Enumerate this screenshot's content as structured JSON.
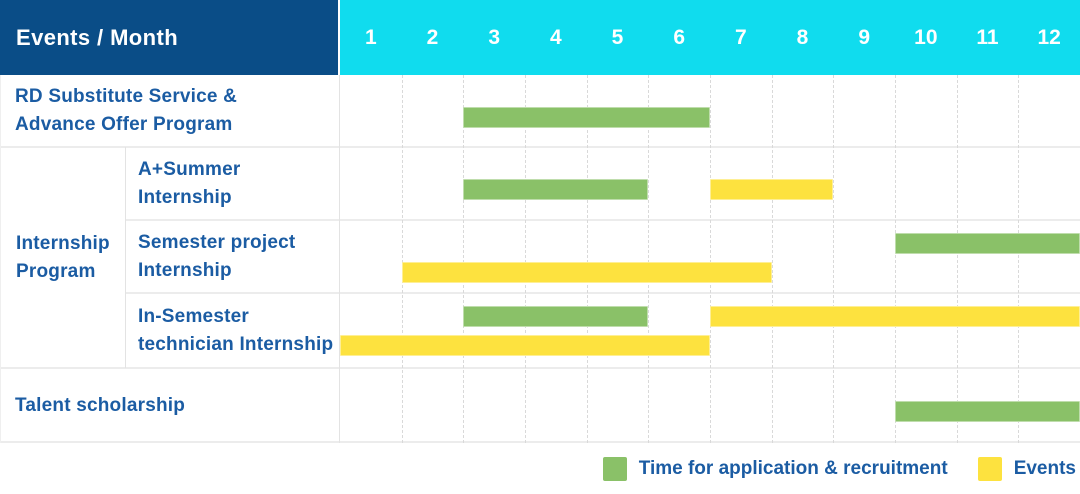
{
  "colors": {
    "header_bg": "#0a4d87",
    "months_bg": "#10dcee",
    "header_text": "#ffffff",
    "label_text": "#1b5ca3",
    "recruitment": "#8ac168",
    "events": "#fde23f",
    "row_line": "#ececec",
    "column_line": "#e3e3e3",
    "month_line_dashed": "#d9d9d9"
  },
  "header": {
    "title": "Events / Month",
    "months": [
      "1",
      "2",
      "3",
      "4",
      "5",
      "6",
      "7",
      "8",
      "9",
      "10",
      "11",
      "12"
    ]
  },
  "groups": [
    {
      "id": "internship-program",
      "label_lines": [
        "Internship",
        "Program"
      ]
    }
  ],
  "rows": [
    {
      "id": "rd-substitute-service",
      "label_lines": [
        "RD Substitute Service &",
        "Advance Offer Program"
      ],
      "group": null,
      "bars": [
        {
          "type": "recruitment",
          "start": 3,
          "end": 6,
          "lane": "center"
        }
      ]
    },
    {
      "id": "a-plus-summer-internship",
      "label_lines": [
        "A+Summer",
        "Internship"
      ],
      "group": "internship-program",
      "bars": [
        {
          "type": "recruitment",
          "start": 3,
          "end": 5,
          "lane": "center"
        },
        {
          "type": "events",
          "start": 7,
          "end": 8,
          "lane": "center"
        }
      ]
    },
    {
      "id": "semester-project-internship",
      "label_lines": [
        "Semester project",
        "Internship"
      ],
      "group": "internship-program",
      "bars": [
        {
          "type": "recruitment",
          "start": 10,
          "end": 12,
          "lane": "top"
        },
        {
          "type": "events",
          "start": 2,
          "end": 7,
          "lane": "bottom"
        }
      ]
    },
    {
      "id": "in-semester-technician-internship",
      "label_lines": [
        "In-Semester",
        "technician Internship"
      ],
      "group": "internship-program",
      "bars": [
        {
          "type": "recruitment",
          "start": 3,
          "end": 5,
          "lane": "top"
        },
        {
          "type": "events",
          "start": 7,
          "end": 12,
          "lane": "top"
        },
        {
          "type": "events",
          "start": 1,
          "end": 6,
          "lane": "bottom"
        }
      ]
    },
    {
      "id": "talent-scholarship",
      "label_lines": [
        "Talent scholarship"
      ],
      "group": null,
      "bars": [
        {
          "type": "recruitment",
          "start": 10,
          "end": 12,
          "lane": "center"
        }
      ]
    }
  ],
  "legend": [
    {
      "type": "recruitment",
      "label": "Time for application & recruitment"
    },
    {
      "type": "events",
      "label": "Events"
    }
  ],
  "chart_data": {
    "type": "bar",
    "subtype": "gantt",
    "title": "Events / Month",
    "xlabel": "Month",
    "x_ticks": [
      1,
      2,
      3,
      4,
      5,
      6,
      7,
      8,
      9,
      10,
      11,
      12
    ],
    "x_range": [
      1,
      12
    ],
    "grid": "vertical-dashed",
    "legend": [
      "Time for application & recruitment",
      "Events"
    ],
    "legend_position": "bottom-right",
    "series_colors": {
      "Time for application & recruitment": "#8ac168",
      "Events": "#fde23f"
    },
    "rows": [
      {
        "event": "RD Substitute Service & Advance Offer Program",
        "group": null,
        "bars": [
          {
            "series": "Time for application & recruitment",
            "start_month": 3,
            "end_month": 6
          }
        ]
      },
      {
        "event": "A+Summer Internship",
        "group": "Internship Program",
        "bars": [
          {
            "series": "Time for application & recruitment",
            "start_month": 3,
            "end_month": 5
          },
          {
            "series": "Events",
            "start_month": 7,
            "end_month": 8
          }
        ]
      },
      {
        "event": "Semester project Internship",
        "group": "Internship Program",
        "bars": [
          {
            "series": "Time for application & recruitment",
            "start_month": 10,
            "end_month": 12
          },
          {
            "series": "Events",
            "start_month": 2,
            "end_month": 7
          }
        ]
      },
      {
        "event": "In-Semester technician Internship",
        "group": "Internship Program",
        "bars": [
          {
            "series": "Time for application & recruitment",
            "start_month": 3,
            "end_month": 5
          },
          {
            "series": "Events",
            "start_month": 7,
            "end_month": 12
          },
          {
            "series": "Events",
            "start_month": 1,
            "end_month": 6
          }
        ]
      },
      {
        "event": "Talent scholarship",
        "group": null,
        "bars": [
          {
            "series": "Time for application & recruitment",
            "start_month": 10,
            "end_month": 12
          }
        ]
      }
    ]
  }
}
